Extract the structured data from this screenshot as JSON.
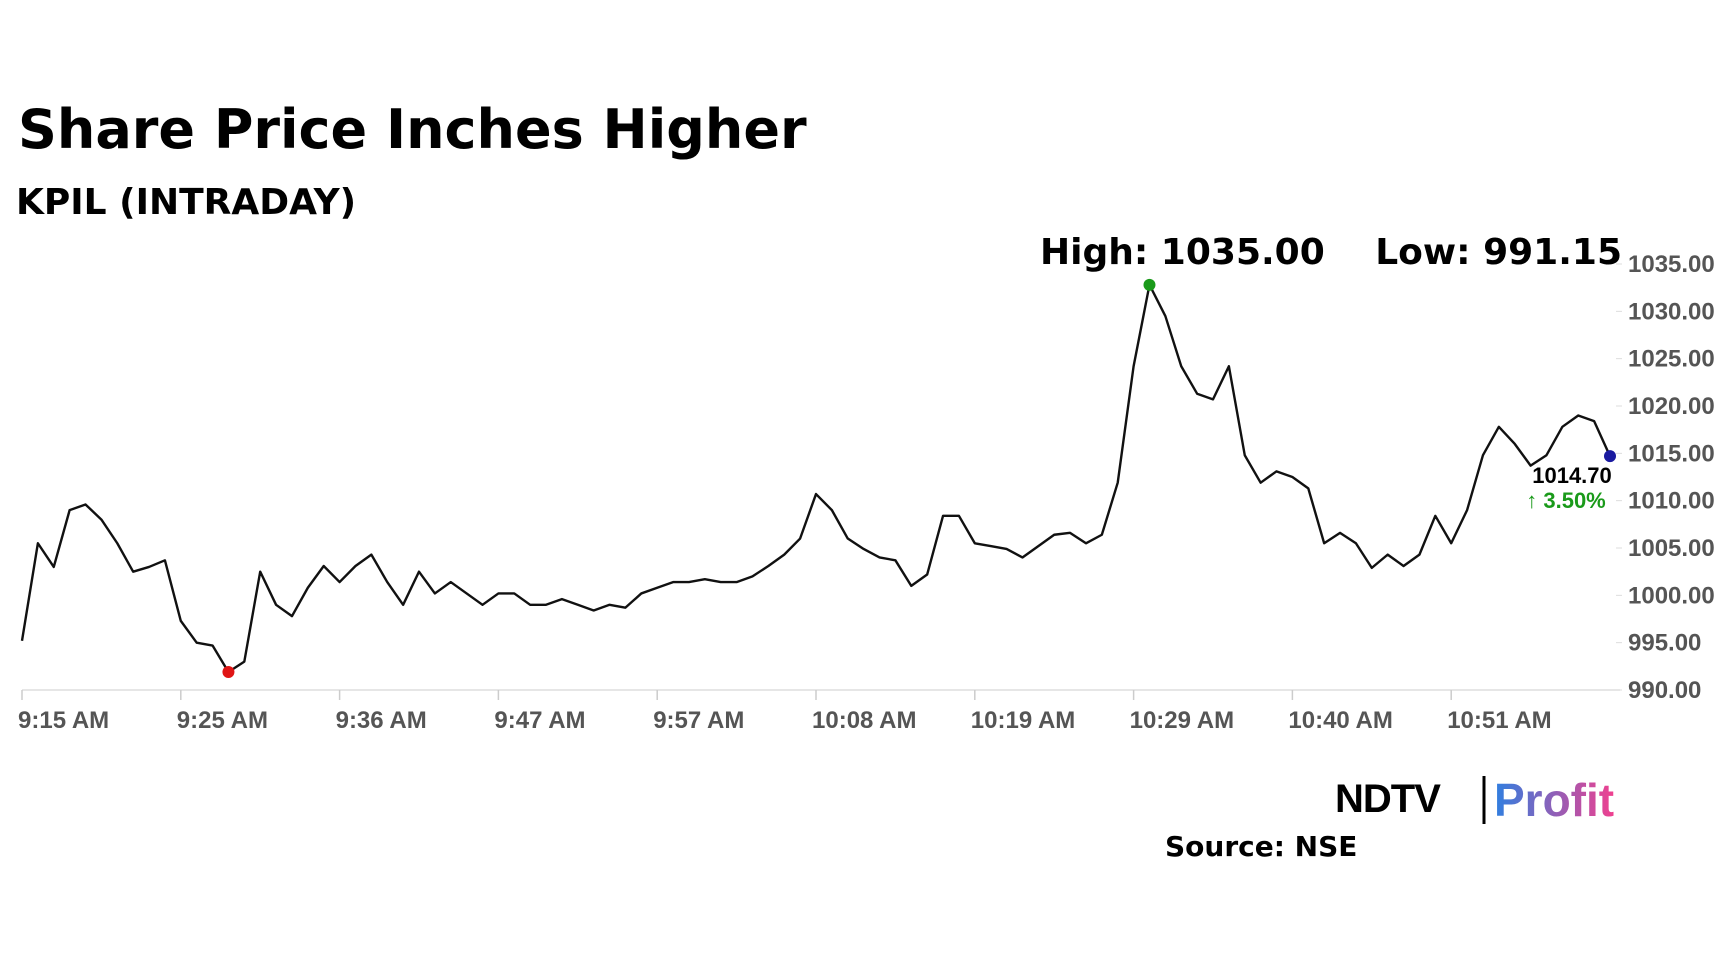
{
  "chart_data": {
    "type": "line",
    "title": "Share Price Inches Higher",
    "subtitle": "KPIL (INTRADAY)",
    "high_label": "High: 1035.00",
    "low_label": "Low: 991.15",
    "last_label": "1014.70",
    "change_label": "↑ 3.50%",
    "source": "Source: NSE",
    "logo": [
      "NDTV",
      "Profit"
    ],
    "color": "#111111",
    "values": [
      995.2,
      1005.5,
      1003,
      1009,
      1009.6,
      1008,
      1005.5,
      1002.5,
      1003,
      1003.7,
      997.3,
      995,
      994.7,
      991.9,
      993,
      1002.5,
      999,
      997.8,
      1000.8,
      1003.1,
      1001.4,
      1003.1,
      1004.3,
      1001.4,
      999,
      1002.5,
      1000.2,
      1001.4,
      1000.2,
      999,
      1000.2,
      1000.2,
      999,
      999,
      999.6,
      999,
      998.4,
      999,
      998.7,
      1000.2,
      1000.8,
      1001.4,
      1001.4,
      1001.7,
      1001.4,
      1001.4,
      1002,
      1003.1,
      1004.3,
      1006,
      1010.7,
      1009,
      1006,
      1004.9,
      1004,
      1003.7,
      1001,
      1002.2,
      1008.4,
      1008.4,
      1005.5,
      1005.2,
      1004.9,
      1004,
      1005.2,
      1006.4,
      1006.6,
      1005.5,
      1006.4,
      1011.9,
      1024.2,
      1032.8,
      1029.5,
      1024.2,
      1021.3,
      1020.7,
      1024.2,
      1014.8,
      1011.9,
      1013.1,
      1012.5,
      1011.3,
      1005.5,
      1006.6,
      1005.5,
      1002.9,
      1004.3,
      1003.1,
      1004.3,
      1008.4,
      1005.5,
      1009,
      1014.8,
      1017.8,
      1016,
      1013.7,
      1014.8,
      1017.8,
      1019,
      1018.4,
      1014.7
    ],
    "xlim": [
      0,
      100
    ],
    "xticks": [
      {
        "value": 0,
        "label": "9:15 AM"
      },
      {
        "value": 10,
        "label": "9:25 AM"
      },
      {
        "value": 20,
        "label": "9:36 AM"
      },
      {
        "value": 30,
        "label": "9:47 AM"
      },
      {
        "value": 40,
        "label": "9:57 AM"
      },
      {
        "value": 50,
        "label": "10:08 AM"
      },
      {
        "value": 60,
        "label": "10:19 AM"
      },
      {
        "value": 70,
        "label": "10:29 AM"
      },
      {
        "value": 80,
        "label": "10:40 AM"
      },
      {
        "value": 90,
        "label": "10:51 AM"
      }
    ],
    "ylim": [
      990,
      1035
    ],
    "yticks": [
      {
        "value": 990,
        "label": "990.00"
      },
      {
        "value": 995,
        "label": "995.00"
      },
      {
        "value": 1000,
        "label": "1000.00"
      },
      {
        "value": 1005,
        "label": "1005.00"
      },
      {
        "value": 1010,
        "label": "1010.00"
      },
      {
        "value": 1015,
        "label": "1015.00"
      },
      {
        "value": 1020,
        "label": "1020.00"
      },
      {
        "value": 1025,
        "label": "1025.00"
      },
      {
        "value": 1030,
        "label": "1030.00"
      },
      {
        "value": 1035,
        "label": "1035.00"
      }
    ]
  }
}
